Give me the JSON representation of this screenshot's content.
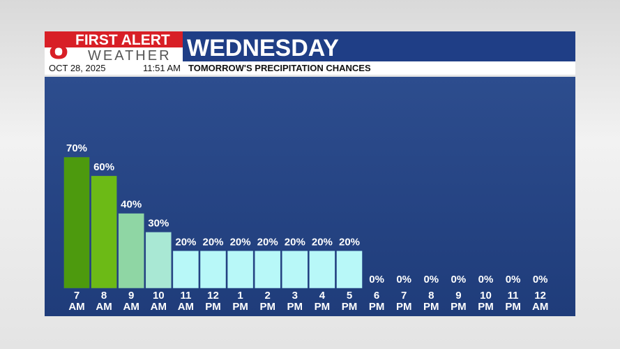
{
  "header": {
    "logo_number": "8",
    "brand_top": "FIRST ALERT",
    "brand_bottom": "WEATHER",
    "day": "WEDNESDAY",
    "date": "OCT 28, 2025",
    "time": "11:51 AM",
    "subtitle": "TOMORROW'S PRECIPITATION CHANCES"
  },
  "chart_data": {
    "type": "bar",
    "categories": [
      "7 AM",
      "8 AM",
      "9 AM",
      "10 AM",
      "11 AM",
      "12 PM",
      "1 PM",
      "2 PM",
      "3 PM",
      "4 PM",
      "5 PM",
      "6 PM",
      "7 PM",
      "8 PM",
      "9 PM",
      "10 PM",
      "11 PM",
      "12 AM"
    ],
    "values": [
      70,
      60,
      40,
      30,
      20,
      20,
      20,
      20,
      20,
      20,
      20,
      0,
      0,
      0,
      0,
      0,
      0,
      0
    ],
    "value_labels": [
      "70%",
      "60%",
      "40%",
      "30%",
      "20%",
      "20%",
      "20%",
      "20%",
      "20%",
      "20%",
      "20%",
      "0%",
      "0%",
      "0%",
      "0%",
      "0%",
      "0%",
      "0%"
    ],
    "colors": [
      "#4d9a0e",
      "#6cba16",
      "#8fd6a4",
      "#a9e8d4",
      "#b8f8f8",
      "#b8f8f8",
      "#b8f8f8",
      "#b8f8f8",
      "#b8f8f8",
      "#b8f8f8",
      "#b8f8f8",
      "#b8f8f8",
      "#b8f8f8",
      "#b8f8f8",
      "#b8f8f8",
      "#b8f8f8",
      "#b8f8f8",
      "#b8f8f8"
    ]
  }
}
